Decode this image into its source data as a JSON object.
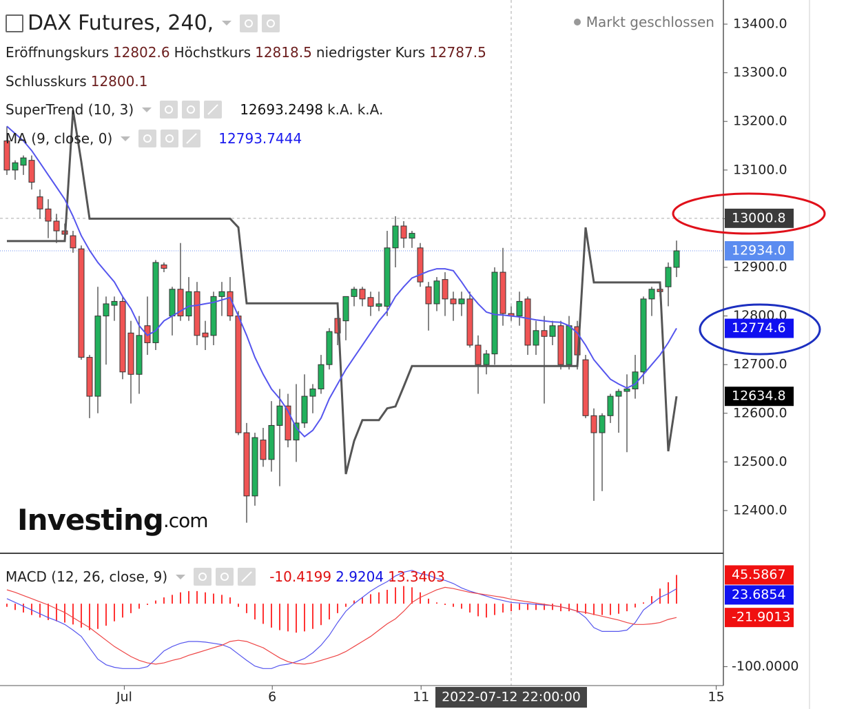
{
  "chart_data": {
    "type": "candlestick",
    "title": "DAX Futures, 240,",
    "status": "Markt geschlossen",
    "watermark": [
      "Investing",
      ".com"
    ],
    "ohlc_legend": [
      {
        "label": "Eröffnungskurs",
        "value": 12802.6
      },
      {
        "label": "Höchstkurs",
        "value": 12818.5
      },
      {
        "label": "niedrigster Kurs",
        "value": 12787.5
      },
      {
        "label": "Schlusskurs",
        "value": 12800.1
      }
    ],
    "xlim": [
      -0.8333,
      86.6667
    ],
    "ylim": [
      12316.4,
      13449.6
    ],
    "yticks": [
      {
        "value": 13400,
        "label": "13400.0"
      },
      {
        "value": 13300,
        "label": "13300.0"
      },
      {
        "value": 13200,
        "label": "13200.0"
      },
      {
        "value": 13100,
        "label": "13100.0"
      },
      {
        "value": 13000,
        "label": "13000.0"
      },
      {
        "value": 12900,
        "label": "12900.0"
      },
      {
        "value": 12800,
        "label": "12800.0"
      },
      {
        "value": 12700,
        "label": "12700.0"
      },
      {
        "value": 12600,
        "label": "12600.0"
      },
      {
        "value": 12500,
        "label": "12500.0"
      },
      {
        "value": 12400,
        "label": "12400.0"
      }
    ],
    "xticks": [
      {
        "value": 14.2,
        "label": "Jul"
      },
      {
        "value": 32.1,
        "label": "6"
      },
      {
        "value": 50.1,
        "label": "11"
      },
      {
        "value": 85.8,
        "label": "15"
      }
    ],
    "crosshair": {
      "x": 61,
      "price": 13000.8,
      "time": "2022-07-12 22:00:00"
    },
    "last_price": {
      "value": 12934,
      "label": "12934.0"
    },
    "up_color": "#22b05c",
    "down_color": "#f05454",
    "candles": {
      "open": [
        13160,
        13100,
        13110,
        13120,
        13045,
        13020,
        12995,
        12975,
        12965,
        12938,
        12715,
        12635,
        12800,
        12822,
        12830,
        12765,
        12680,
        12780,
        12745,
        12905,
        12800,
        12855,
        12800,
        12850,
        12765,
        12760,
        12840,
        12850,
        12800,
        12560,
        12430,
        12545,
        12505,
        12575,
        12615,
        12545,
        12580,
        12635,
        12650,
        12700,
        12795,
        12790,
        12840,
        12855,
        12838,
        12820,
        12820,
        12940,
        12985,
        12960,
        12940,
        12860,
        12825,
        12875,
        12835,
        12825,
        12835,
        12740,
        12700,
        12722,
        12890,
        12805,
        12800,
        12835,
        12740,
        12770,
        12758,
        12780,
        12700,
        12778,
        12710,
        12595,
        12560,
        12595,
        12635,
        12645,
        12650,
        12685,
        12835,
        12855,
        12860,
        12900
      ],
      "high": [
        13190,
        13120,
        13130,
        13130,
        13060,
        13040,
        13010,
        12990,
        12975,
        12945,
        12720,
        12860,
        12840,
        12840,
        12840,
        12790,
        12800,
        12840,
        12915,
        12910,
        12860,
        12950,
        12880,
        12870,
        12790,
        12850,
        12870,
        12880,
        12810,
        12580,
        12560,
        12570,
        12625,
        12650,
        12640,
        12660,
        12680,
        12660,
        12720,
        12775,
        12810,
        12830,
        12860,
        12860,
        12850,
        12850,
        12975,
        13005,
        12995,
        12975,
        12950,
        12870,
        12880,
        12890,
        12850,
        12850,
        12850,
        12760,
        12730,
        12900,
        12940,
        12820,
        12850,
        12840,
        12790,
        12800,
        12790,
        12790,
        12800,
        12790,
        12720,
        12610,
        12600,
        12640,
        12650,
        12680,
        12720,
        12840,
        12860,
        12865,
        12910,
        12955
      ],
      "low": [
        13090,
        13080,
        13090,
        13060,
        13000,
        12960,
        12950,
        12960,
        12930,
        12710,
        12590,
        12600,
        12700,
        12790,
        12670,
        12620,
        12640,
        12720,
        12730,
        12890,
        12760,
        12790,
        12790,
        12740,
        12730,
        12740,
        12800,
        12790,
        12555,
        12375,
        12410,
        12490,
        12480,
        12450,
        12530,
        12500,
        12570,
        12600,
        12640,
        12690,
        12740,
        12750,
        12820,
        12820,
        12800,
        12810,
        12800,
        12900,
        12940,
        12940,
        12860,
        12770,
        12810,
        12800,
        12790,
        12800,
        12735,
        12640,
        12680,
        12700,
        12780,
        12790,
        12780,
        12720,
        12720,
        12620,
        12740,
        12690,
        12690,
        12690,
        12590,
        12420,
        12440,
        12580,
        12560,
        12520,
        12630,
        12660,
        12800,
        12840,
        12820,
        12880
      ],
      "close": [
        13100,
        13115,
        13125,
        13075,
        13020,
        12995,
        12975,
        12968,
        12940,
        12715,
        12635,
        12800,
        12825,
        12830,
        12685,
        12680,
        12760,
        12745,
        12910,
        12898,
        12855,
        12800,
        12850,
        12760,
        12757,
        12840,
        12850,
        12800,
        12560,
        12430,
        12550,
        12505,
        12575,
        12615,
        12545,
        12580,
        12635,
        12650,
        12700,
        12768,
        12765,
        12840,
        12855,
        12835,
        12820,
        12825,
        12940,
        12985,
        12960,
        12970,
        12870,
        12825,
        12872,
        12835,
        12825,
        12835,
        12740,
        12700,
        12722,
        12890,
        12805,
        12800,
        12830,
        12740,
        12770,
        12758,
        12780,
        12700,
        12780,
        12720,
        12595,
        12560,
        12595,
        12635,
        12645,
        12650,
        12685,
        12835,
        12855,
        12850,
        12900,
        12934
      ]
    },
    "supertrend": {
      "name": "SuperTrend (10, 3)",
      "color": "#555555",
      "legend_values": [
        12693.2498,
        "k.A.",
        "k.A."
      ],
      "values": [
        12954,
        12954,
        12954,
        12954,
        12954,
        12954,
        12954,
        12954,
        13223,
        13117,
        13000,
        13000,
        13000,
        13000,
        13000,
        13000,
        13000,
        13000,
        13000,
        13000,
        13000,
        13000,
        13000,
        13000,
        13000,
        13000,
        13000,
        13000,
        12982,
        12826,
        12826,
        12826,
        12826,
        12826,
        12826,
        12826,
        12826,
        12826,
        12826,
        12826,
        12826,
        12475,
        12543,
        12586,
        12586,
        12586,
        12610,
        12614,
        12655,
        12697,
        12697,
        12697,
        12697,
        12697,
        12697,
        12697,
        12697,
        12697,
        12697,
        12697,
        12697,
        12697,
        12697,
        12697,
        12697,
        12697,
        12697,
        12697,
        12697,
        12697,
        12982,
        12869,
        12869,
        12869,
        12869,
        12869,
        12869,
        12869,
        12869,
        12869,
        12522,
        12634.8
      ]
    },
    "ma": {
      "name": "MA (9, close, 0)",
      "color": "#5555ee",
      "legend_value": 12793.7444,
      "values": [
        13190,
        13175,
        13160,
        13140,
        13115,
        13090,
        13065,
        13040,
        13005,
        12965,
        12935,
        12910,
        12890,
        12870,
        12840,
        12815,
        12780,
        12760,
        12770,
        12790,
        12800,
        12810,
        12820,
        12822,
        12825,
        12828,
        12833,
        12838,
        12800,
        12760,
        12715,
        12680,
        12650,
        12630,
        12605,
        12570,
        12552,
        12565,
        12590,
        12630,
        12660,
        12690,
        12715,
        12740,
        12765,
        12790,
        12810,
        12840,
        12860,
        12878,
        12885,
        12892,
        12897,
        12897,
        12893,
        12870,
        12845,
        12825,
        12808,
        12803,
        12802,
        12800,
        12798,
        12795,
        12792,
        12790,
        12788,
        12787,
        12780,
        12765,
        12740,
        12710,
        12690,
        12670,
        12660,
        12652,
        12660,
        12680,
        12700,
        12720,
        12745,
        12774.6
      ]
    },
    "macd": {
      "name": "MACD (12, 26, close, 9)",
      "legend_values": [
        -10.4199,
        2.9204,
        13.3403
      ],
      "ylim": [
        -130,
        80
      ],
      "yticks": [
        {
          "value": -100,
          "label": "-100.0000"
        }
      ],
      "histogram_color": "#ff3333",
      "macd_color": "#5555ee",
      "signal_color": "#ee4444",
      "histogram": [
        -5,
        -10,
        -14,
        -18,
        -22,
        -26,
        -28,
        -30,
        -33,
        -38,
        -42,
        -40,
        -35,
        -28,
        -22,
        -15,
        -8,
        -2,
        5,
        10,
        14,
        18,
        20,
        20,
        18,
        16,
        14,
        10,
        -5,
        -15,
        -25,
        -32,
        -38,
        -42,
        -44,
        -46,
        -44,
        -40,
        -34,
        -25,
        -15,
        -5,
        5,
        10,
        15,
        18,
        22,
        26,
        28,
        26,
        18,
        8,
        2,
        -2,
        -5,
        -8,
        -14,
        -20,
        -22,
        -18,
        -14,
        -12,
        -10,
        -10,
        -10,
        -10,
        -10,
        -12,
        -12,
        -14,
        -16,
        -18,
        -18,
        -18,
        -16,
        -12,
        -6,
        2,
        12,
        24,
        34,
        45.5867
      ],
      "macd": [
        8,
        2,
        -4,
        -10,
        -16,
        -22,
        -27,
        -33,
        -42,
        -52,
        -70,
        -88,
        -97,
        -101,
        -103,
        -103,
        -103,
        -100,
        -88,
        -75,
        -68,
        -63,
        -60,
        -60,
        -61,
        -63,
        -65,
        -70,
        -80,
        -90,
        -99,
        -103,
        -103,
        -98,
        -96,
        -92,
        -87,
        -78,
        -66,
        -50,
        -30,
        -12,
        0,
        10,
        20,
        28,
        35,
        44,
        50,
        53,
        48,
        45,
        40,
        37,
        32,
        25,
        20,
        16,
        12,
        8,
        5,
        2,
        1,
        0,
        -1,
        -2,
        -3,
        -5,
        -8,
        -12,
        -22,
        -38,
        -44,
        -44,
        -44,
        -42,
        -30,
        -10,
        0,
        10,
        16,
        23.6854
      ],
      "signal": [
        22,
        18,
        13,
        8,
        3,
        -2,
        -8,
        -14,
        -22,
        -30,
        -38,
        -48,
        -58,
        -68,
        -76,
        -84,
        -90,
        -94,
        -96,
        -94,
        -90,
        -87,
        -82,
        -78,
        -74,
        -70,
        -66,
        -60,
        -58,
        -60,
        -65,
        -70,
        -78,
        -86,
        -92,
        -95,
        -96,
        -94,
        -90,
        -86,
        -82,
        -76,
        -68,
        -60,
        -52,
        -42,
        -32,
        -24,
        -12,
        2,
        10,
        16,
        22,
        26,
        24,
        21,
        18,
        16,
        14,
        12,
        10,
        7,
        5,
        3,
        1,
        -1,
        -3,
        -5,
        -8,
        -12,
        -14,
        -17,
        -20,
        -23,
        -26,
        -30,
        -33,
        -33,
        -32,
        -30,
        -25,
        -21.9013
      ]
    }
  }
}
